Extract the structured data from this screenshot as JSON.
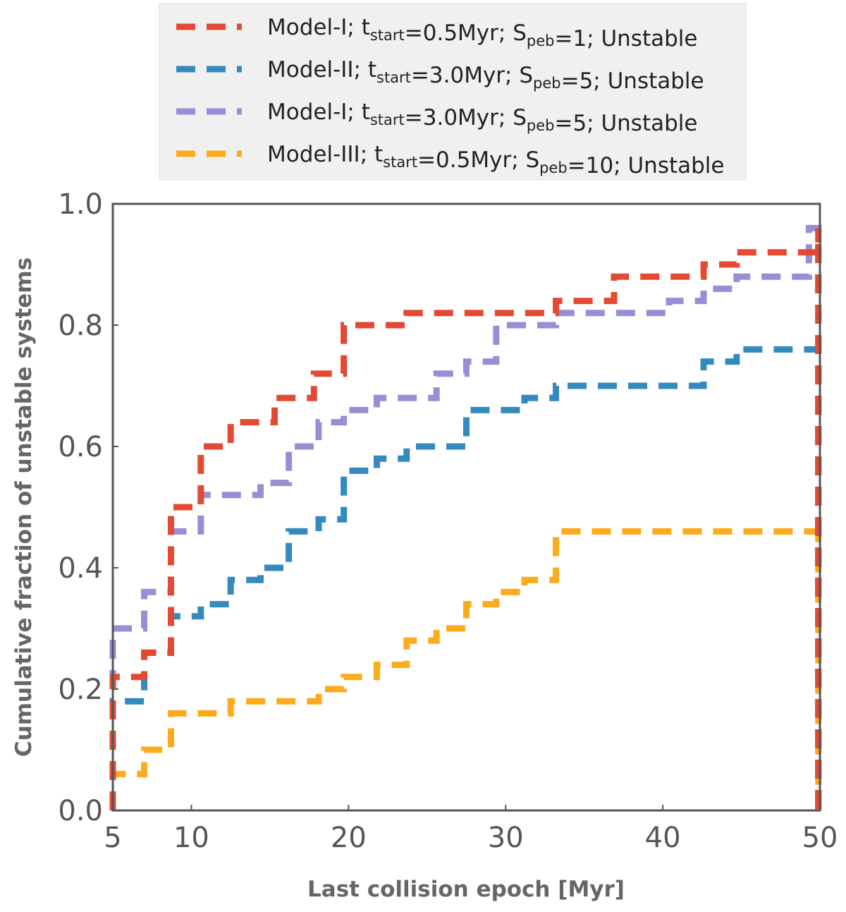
{
  "chart_data": {
    "type": "line",
    "step": true,
    "title": "",
    "xlabel": "Last collision epoch [Myr]",
    "ylabel": "Cumulative fraction of unstable systems",
    "xlim": [
      5,
      50
    ],
    "ylim": [
      0.0,
      1.0
    ],
    "xticks": [
      5,
      10,
      20,
      30,
      40,
      50
    ],
    "xtick_labels": [
      "5",
      "10",
      "20",
      "30",
      "40",
      "50"
    ],
    "yticks": [
      0.0,
      0.2,
      0.4,
      0.6,
      0.8,
      1.0
    ],
    "ytick_labels": [
      "0.0",
      "0.2",
      "0.4",
      "0.6",
      "0.8",
      "1.0"
    ],
    "grid": false,
    "legend_position": "top-center, outside plot",
    "series": [
      {
        "name": "Model-I; tstart=0.5Myr; Speb=1; Unstable",
        "legend": {
          "model": "Model-I; t",
          "sub1": "start",
          "mid": "=0.5Myr;  S",
          "sub2": "peb",
          "tail": "=1; Unstable"
        },
        "color": "#e24a33",
        "x": [
          5,
          7,
          8.7,
          10.6,
          12.5,
          15.3,
          17.8,
          19.7,
          23.7,
          33.2,
          36.9,
          42.6,
          44.7,
          49.9
        ],
        "y": [
          0.22,
          0.26,
          0.5,
          0.6,
          0.64,
          0.68,
          0.72,
          0.8,
          0.82,
          0.84,
          0.88,
          0.9,
          0.92,
          0.96
        ]
      },
      {
        "name": "Model-II; tstart=3.0Myr; Speb=5; Unstable",
        "legend": {
          "model": "Model-II; t",
          "sub1": "start",
          "mid": "=3.0Myr;  S",
          "sub2": "peb",
          "tail": "=5; Unstable"
        },
        "color": "#348abd",
        "x": [
          5,
          7,
          8.7,
          10.6,
          12.5,
          14.4,
          16.2,
          18.1,
          19.7,
          21.8,
          23.7,
          27.5,
          31.2,
          33.2,
          42.6,
          44.7,
          49.9
        ],
        "y": [
          0.18,
          0.26,
          0.32,
          0.34,
          0.38,
          0.4,
          0.46,
          0.48,
          0.56,
          0.58,
          0.6,
          0.66,
          0.68,
          0.7,
          0.74,
          0.76,
          0.76
        ]
      },
      {
        "name": "Model-I; tstart=3.0Myr; Speb=5; Unstable",
        "legend": {
          "model": "Model-I; t",
          "sub1": "start",
          "mid": "=3.0Myr; S",
          "sub2": "peb",
          "tail": "=5; Unstable"
        },
        "color": "#988ed5",
        "x": [
          5,
          7,
          8.7,
          10.6,
          14.4,
          16.2,
          18.1,
          19.7,
          21.8,
          25.6,
          27.5,
          29.4,
          33.2,
          40.4,
          42.6,
          44.7,
          49.3,
          49.9
        ],
        "y": [
          0.3,
          0.36,
          0.46,
          0.52,
          0.54,
          0.6,
          0.64,
          0.66,
          0.68,
          0.72,
          0.74,
          0.8,
          0.82,
          0.84,
          0.86,
          0.88,
          0.96,
          0.96
        ]
      },
      {
        "name": "Model-III; tstart=0.5Myr; Speb=10; Unstable",
        "legend": {
          "model": "Model-III; t",
          "sub1": "start",
          "mid": "=0.5Myr; S",
          "sub2": "peb",
          "tail": "=10; Unstable"
        },
        "color": "#fbab1c",
        "x": [
          5,
          7,
          8.7,
          10.6,
          12.5,
          16.2,
          18.1,
          19.7,
          21.8,
          23.7,
          25.6,
          27.5,
          29.4,
          31.2,
          33.2,
          49.9
        ],
        "y": [
          0.06,
          0.1,
          0.16,
          0.16,
          0.18,
          0.18,
          0.2,
          0.22,
          0.24,
          0.28,
          0.3,
          0.34,
          0.36,
          0.38,
          0.46,
          0.48
        ]
      }
    ]
  }
}
